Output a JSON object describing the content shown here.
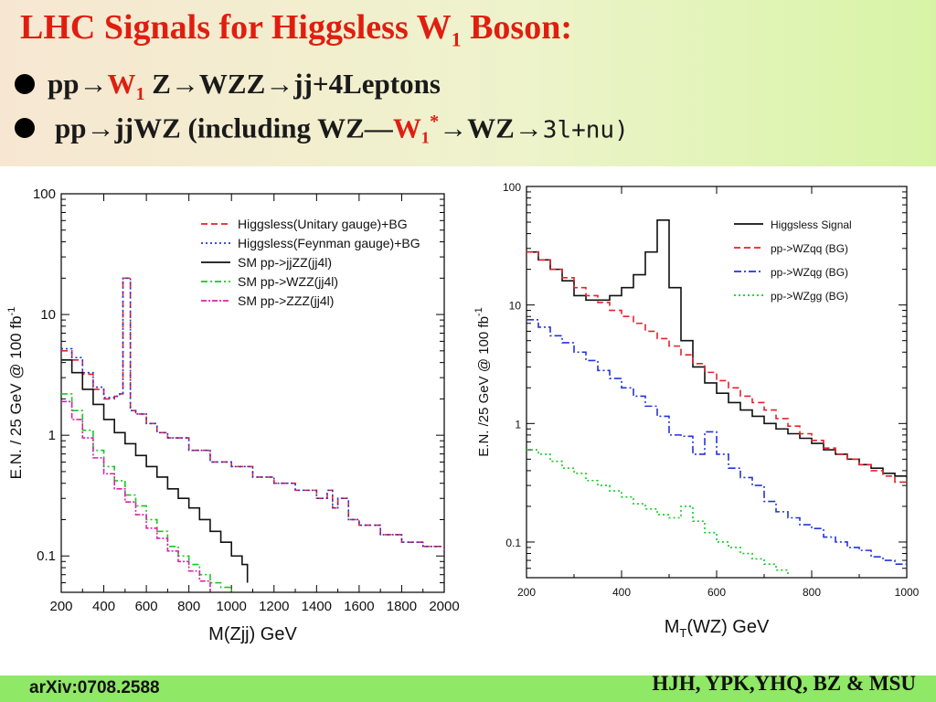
{
  "slide": {
    "title_main": "LHC Signals for Higgsless W",
    "title_sub": "1",
    "title_end": " Boson:",
    "b1_pp": "pp",
    "b1_arrow": "→",
    "b1_w": "W",
    "b1_wsub": "1",
    "b1_rest": " Z→WZZ→jj+4Leptons",
    "b2_pp": "pp",
    "b2_arrow": "→",
    "b2_mid": "jjWZ (including WZ—",
    "b2_w": "W₁",
    "b2_star": "*",
    "b2_rest": "→WZ→",
    "b2_mono": "3l+nu)",
    "footer_left": "arXiv:0708.2588",
    "footer_right": "HJH, YPK,YHQ, BZ & MSU"
  },
  "chart_data": [
    {
      "type": "line",
      "xlabel": "M(Zjj)  GeV",
      "ylabel": "E.N. / 25 GeV @ 100 fb",
      "ylabel_sup": "-1",
      "xlim": [
        200,
        2000
      ],
      "ylim": [
        0.05,
        100
      ],
      "log_y": true,
      "x_ticks": [
        200,
        400,
        600,
        800,
        1000,
        1200,
        1400,
        1600,
        1800,
        2000
      ],
      "y_ticks": [
        {
          "v": 100,
          "label": "100"
        },
        {
          "v": 10,
          "label": "10"
        },
        {
          "v": 1,
          "label": "1"
        },
        {
          "v": 0.1,
          "label": "0.1"
        }
      ],
      "legend_position": "top-right",
      "series": [
        {
          "name": "Higgsless(Unitary gauge)+BG",
          "color": "#e8202a",
          "dash": "7,4",
          "x": [
            200,
            250,
            300,
            350,
            400,
            450,
            475,
            490,
            520,
            525,
            550,
            600,
            650,
            700,
            800,
            900,
            1000,
            1100,
            1200,
            1300,
            1400,
            1450,
            1475,
            1500,
            1550,
            1600,
            1700,
            1800,
            1900,
            2000
          ],
          "y": [
            5,
            4.2,
            3.2,
            2.4,
            2.0,
            2.1,
            2.2,
            20,
            20,
            1.6,
            1.5,
            1.25,
            1.05,
            0.95,
            0.75,
            0.6,
            0.55,
            0.45,
            0.4,
            0.35,
            0.3,
            0.35,
            0.25,
            0.3,
            0.2,
            0.18,
            0.15,
            0.13,
            0.12,
            0.1
          ]
        },
        {
          "name": "Higgsless(Feynman gauge)+BG",
          "color": "#2233dd",
          "dash": "2,3",
          "x": [
            200,
            250,
            300,
            350,
            400,
            450,
            475,
            490,
            520,
            525,
            550,
            600,
            650,
            700,
            800,
            900,
            1000,
            1100,
            1200,
            1300,
            1400,
            1450,
            1475,
            1500,
            1550,
            1600,
            1700,
            1800,
            1900,
            2000
          ],
          "y": [
            5.2,
            4.4,
            3.3,
            2.5,
            2.05,
            2.1,
            2.2,
            20,
            20,
            1.6,
            1.5,
            1.25,
            1.05,
            0.95,
            0.75,
            0.6,
            0.55,
            0.45,
            0.4,
            0.35,
            0.3,
            0.35,
            0.25,
            0.3,
            0.2,
            0.18,
            0.15,
            0.13,
            0.12,
            0.1
          ]
        },
        {
          "name": "SM pp->jjZZ(jj4l)",
          "color": "#111111",
          "dash": "",
          "x": [
            200,
            250,
            300,
            350,
            400,
            450,
            500,
            550,
            600,
            650,
            700,
            750,
            800,
            850,
            900,
            950,
            1000,
            1050,
            1075
          ],
          "y": [
            4.2,
            3.3,
            2.4,
            1.8,
            1.35,
            1.05,
            0.85,
            0.68,
            0.55,
            0.45,
            0.36,
            0.3,
            0.25,
            0.2,
            0.16,
            0.13,
            0.1,
            0.085,
            0.06
          ]
        },
        {
          "name": "SM pp->WZZ(jj4l)",
          "color": "#11cc22",
          "dash": "7,3,2,3",
          "x": [
            200,
            250,
            300,
            350,
            400,
            450,
            500,
            550,
            600,
            650,
            700,
            750,
            800,
            850,
            900,
            950,
            1000
          ],
          "y": [
            2.2,
            1.6,
            1.1,
            0.75,
            0.55,
            0.42,
            0.32,
            0.26,
            0.2,
            0.16,
            0.12,
            0.1,
            0.085,
            0.07,
            0.06,
            0.055,
            0.05
          ]
        },
        {
          "name": "SM pp->ZZZ(jj4l)",
          "color": "#dd22aa",
          "dash": "6,2,2,2",
          "x": [
            200,
            250,
            300,
            350,
            400,
            450,
            500,
            550,
            600,
            650,
            700,
            750,
            800,
            850,
            900
          ],
          "y": [
            1.9,
            1.35,
            0.95,
            0.65,
            0.48,
            0.36,
            0.28,
            0.22,
            0.17,
            0.14,
            0.11,
            0.09,
            0.075,
            0.062,
            0.05
          ]
        }
      ]
    },
    {
      "type": "line",
      "xlabel": "M",
      "xlabel_sub": "T",
      "xlabel_rest": "(WZ)  GeV",
      "ylabel": "E.N. /25 GeV @ 100 fb",
      "ylabel_sup": "-1",
      "xlim": [
        200,
        1000
      ],
      "ylim": [
        0.05,
        100
      ],
      "log_y": true,
      "x_ticks": [
        200,
        400,
        600,
        800,
        1000
      ],
      "y_ticks": [
        {
          "v": 100,
          "label": "100"
        },
        {
          "v": 10,
          "label": "10"
        },
        {
          "v": 1,
          "label": "1"
        },
        {
          "v": 0.1,
          "label": "0.1"
        }
      ],
      "legend_position": "top-right",
      "series": [
        {
          "name": "Higgsless Signal",
          "color": "#111111",
          "dash": "",
          "x": [
            200,
            225,
            250,
            275,
            300,
            325,
            350,
            375,
            400,
            425,
            450,
            475,
            500,
            525,
            550,
            575,
            600,
            625,
            650,
            675,
            700,
            725,
            750,
            775,
            800,
            825,
            850,
            875,
            900,
            925,
            950,
            975,
            1000
          ],
          "y": [
            28,
            24,
            20,
            16,
            12,
            11,
            11,
            12,
            14,
            18,
            28,
            52,
            14,
            5,
            3,
            2.2,
            1.8,
            1.5,
            1.3,
            1.15,
            1.0,
            0.9,
            0.82,
            0.75,
            0.68,
            0.6,
            0.55,
            0.5,
            0.45,
            0.42,
            0.38,
            0.36,
            0.35
          ]
        },
        {
          "name": "pp->WZqq (BG)",
          "color": "#e8202a",
          "dash": "7,4",
          "x": [
            200,
            225,
            250,
            275,
            300,
            325,
            350,
            375,
            400,
            425,
            450,
            475,
            500,
            525,
            550,
            575,
            600,
            625,
            650,
            675,
            700,
            725,
            750,
            775,
            800,
            825,
            850,
            875,
            900,
            925,
            950,
            975,
            1000
          ],
          "y": [
            28,
            24,
            20,
            17,
            14,
            12,
            10.5,
            9,
            8,
            7,
            6,
            5.2,
            4.5,
            3.8,
            3.2,
            2.7,
            2.3,
            2.0,
            1.7,
            1.5,
            1.3,
            1.1,
            0.95,
            0.82,
            0.72,
            0.62,
            0.55,
            0.5,
            0.45,
            0.4,
            0.36,
            0.32,
            0.3
          ]
        },
        {
          "name": "pp->WZqg (BG)",
          "color": "#2233dd",
          "dash": "8,3,2,3",
          "x": [
            200,
            225,
            250,
            275,
            300,
            325,
            350,
            375,
            400,
            425,
            450,
            475,
            500,
            525,
            550,
            575,
            600,
            625,
            650,
            675,
            700,
            725,
            750,
            775,
            800,
            825,
            850,
            875,
            900,
            925,
            950,
            975,
            1000
          ],
          "y": [
            7.5,
            6.5,
            5.5,
            4.8,
            4,
            3.4,
            2.8,
            2.4,
            2,
            1.7,
            1.4,
            1.15,
            0.8,
            0.78,
            0.55,
            0.85,
            0.55,
            0.42,
            0.35,
            0.3,
            0.22,
            0.18,
            0.16,
            0.14,
            0.13,
            0.11,
            0.1,
            0.09,
            0.085,
            0.075,
            0.07,
            0.065,
            0.06
          ]
        },
        {
          "name": "pp->WZgg (BG)",
          "color": "#11cc22",
          "dash": "2,3",
          "x": [
            200,
            225,
            250,
            275,
            300,
            325,
            350,
            375,
            400,
            425,
            450,
            475,
            500,
            525,
            550,
            575,
            600,
            625,
            650,
            675,
            700,
            725,
            750
          ],
          "y": [
            0.6,
            0.55,
            0.48,
            0.42,
            0.38,
            0.33,
            0.3,
            0.27,
            0.24,
            0.21,
            0.19,
            0.17,
            0.16,
            0.2,
            0.15,
            0.12,
            0.1,
            0.09,
            0.08,
            0.072,
            0.065,
            0.058,
            0.052
          ]
        }
      ]
    }
  ]
}
